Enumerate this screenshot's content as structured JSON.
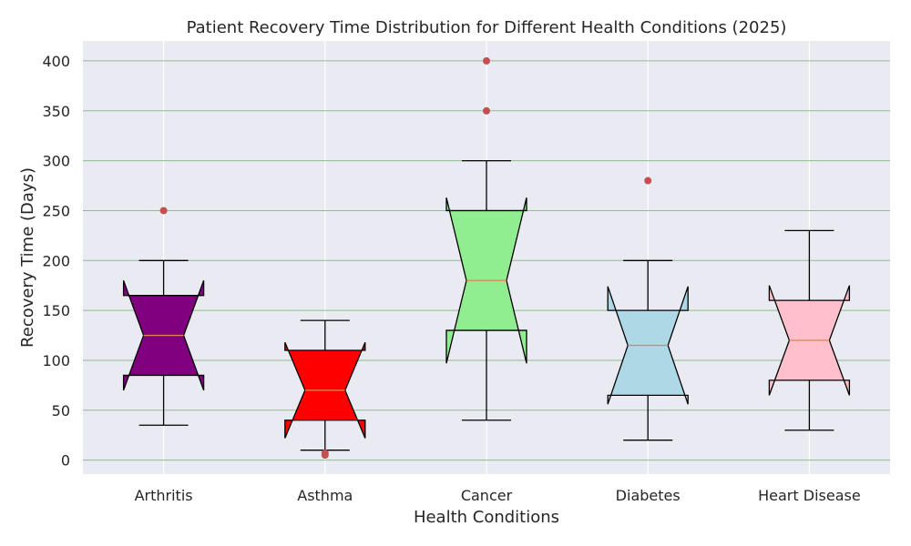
{
  "chart_data": {
    "type": "box",
    "title": "Patient Recovery Time Distribution for Different Health Conditions (2025)",
    "xlabel": "Health Conditions",
    "ylabel": "Recovery Time (Days)",
    "ylim": [
      -14,
      420
    ],
    "yticks": [
      0,
      50,
      100,
      150,
      200,
      250,
      300,
      350,
      400
    ],
    "notched": true,
    "grid": true,
    "colors": {
      "background": "#eaeaf2",
      "grid_y": "#8fbc8f",
      "grid_x": "#ffffff",
      "median": "#dd8452",
      "outlier": "#c44e52",
      "edge": "#000000"
    },
    "categories": [
      "Arthritis",
      "Asthma",
      "Cancer",
      "Diabetes",
      "Heart Disease"
    ],
    "boxes": [
      {
        "category": "Arthritis",
        "whisker_low": 35,
        "q1": 85,
        "median": 125,
        "q3": 165,
        "whisker_high": 200,
        "notch_low": 70,
        "notch_high": 180,
        "outliers": [
          250
        ],
        "color": "#800080"
      },
      {
        "category": "Asthma",
        "whisker_low": 10,
        "q1": 40,
        "median": 70,
        "q3": 110,
        "whisker_high": 140,
        "notch_low": 22,
        "notch_high": 118,
        "outliers": [
          7,
          5
        ],
        "color": "#ff0000"
      },
      {
        "category": "Cancer",
        "whisker_low": 40,
        "q1": 130,
        "median": 180,
        "q3": 250,
        "whisker_high": 300,
        "notch_low": 97,
        "notch_high": 263,
        "outliers": [
          350,
          400
        ],
        "color": "#90ee90"
      },
      {
        "category": "Diabetes",
        "whisker_low": 20,
        "q1": 65,
        "median": 115,
        "q3": 150,
        "whisker_high": 200,
        "notch_low": 56,
        "notch_high": 174,
        "outliers": [
          280
        ],
        "color": "#add8e6"
      },
      {
        "category": "Heart Disease",
        "whisker_low": 30,
        "q1": 80,
        "median": 120,
        "q3": 160,
        "whisker_high": 230,
        "notch_low": 65,
        "notch_high": 175,
        "outliers": [],
        "color": "#ffc0cb"
      }
    ]
  }
}
